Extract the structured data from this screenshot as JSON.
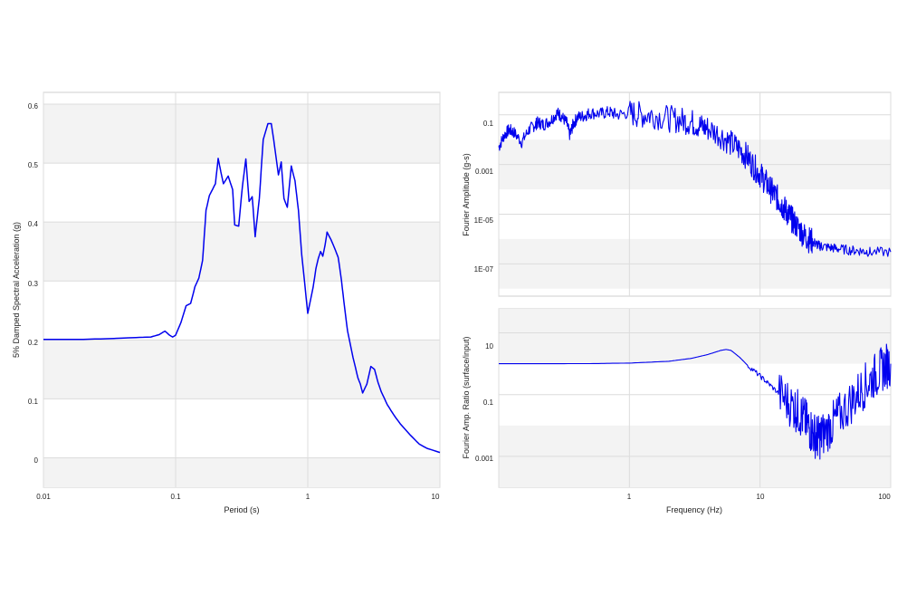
{
  "chart_data": [
    {
      "id": "spectral",
      "type": "line",
      "xlabel": "Period (s)",
      "ylabel": "5% Damped Spectral Acceleration (g)",
      "xscale": "log",
      "yscale": "linear",
      "xlim": [
        0.01,
        10
      ],
      "ylim": [
        -0.05,
        0.62
      ],
      "xticks": [
        "0.01",
        "0.1",
        "1",
        "10"
      ],
      "yticks": [
        "0",
        "0.1",
        "0.2",
        "0.3",
        "0.4",
        "0.5",
        "0.6"
      ],
      "grid": true,
      "line_color": "#0000ee",
      "series": [
        {
          "x": [
            0.01,
            0.02,
            0.03,
            0.05,
            0.065,
            0.075,
            0.083,
            0.09,
            0.095,
            0.1,
            0.11,
            0.12,
            0.13,
            0.14,
            0.15,
            0.16,
            0.17,
            0.18,
            0.19,
            0.2,
            0.21,
            0.22,
            0.23,
            0.25,
            0.27,
            0.28,
            0.3,
            0.32,
            0.34,
            0.36,
            0.38,
            0.4,
            0.43,
            0.46,
            0.5,
            0.53,
            0.56,
            0.6,
            0.63,
            0.66,
            0.7,
            0.75,
            0.8,
            0.85,
            0.9,
            1.0,
            1.1,
            1.15,
            1.2,
            1.25,
            1.3,
            1.35,
            1.4,
            1.5,
            1.6,
            1.7,
            1.8,
            1.9,
            2.0,
            2.2,
            2.4,
            2.5,
            2.6,
            2.8,
            3.0,
            3.2,
            3.4,
            3.6,
            4.0,
            4.5,
            5.0,
            6.0,
            7.0,
            8.0,
            10.0
          ],
          "y": [
            0.201,
            0.201,
            0.202,
            0.204,
            0.205,
            0.209,
            0.215,
            0.208,
            0.205,
            0.208,
            0.23,
            0.258,
            0.262,
            0.29,
            0.305,
            0.335,
            0.42,
            0.445,
            0.455,
            0.465,
            0.508,
            0.485,
            0.465,
            0.478,
            0.455,
            0.395,
            0.393,
            0.46,
            0.507,
            0.435,
            0.443,
            0.375,
            0.44,
            0.54,
            0.567,
            0.567,
            0.53,
            0.48,
            0.502,
            0.44,
            0.425,
            0.495,
            0.47,
            0.42,
            0.345,
            0.245,
            0.29,
            0.32,
            0.338,
            0.35,
            0.342,
            0.36,
            0.383,
            0.37,
            0.355,
            0.34,
            0.3,
            0.255,
            0.215,
            0.17,
            0.135,
            0.125,
            0.11,
            0.125,
            0.155,
            0.15,
            0.128,
            0.112,
            0.09,
            0.072,
            0.058,
            0.038,
            0.023,
            0.016,
            0.009
          ]
        }
      ]
    },
    {
      "id": "fourier-amplitude",
      "type": "line",
      "xlabel": "",
      "ylabel": "Fourier Amplitude (g-s)",
      "xscale": "log",
      "yscale": "log",
      "xlim": [
        0.1,
        100
      ],
      "ylim": [
        5e-09,
        0.8
      ],
      "yticks": [
        "1E-07",
        "1E-05",
        "0.001",
        "0.1"
      ],
      "grid": true,
      "line_color": "#0000ee",
      "series": [
        {
          "x": [
            0.1,
            0.11,
            0.12,
            0.13,
            0.15,
            0.17,
            0.19,
            0.2,
            0.22,
            0.25,
            0.28,
            0.3,
            0.33,
            0.35,
            0.37,
            0.4,
            0.45,
            0.5,
            0.6,
            0.7,
            0.8,
            1.0,
            1.2,
            1.5,
            2.0,
            2.5,
            3.0,
            3.5,
            4.0,
            5.0,
            6.0,
            7.0,
            8.0,
            9.0,
            10.0,
            11.0,
            12.0,
            13.0,
            14.0,
            15.0,
            16.0,
            17.0,
            18.0,
            20.0,
            22.0,
            24.0,
            26.0,
            28.0,
            30.0,
            35.0,
            40.0,
            50.0,
            60.0,
            70.0,
            100.0
          ],
          "y": [
            0.005,
            0.015,
            0.025,
            0.02,
            0.008,
            0.025,
            0.04,
            0.05,
            0.04,
            0.06,
            0.12,
            0.09,
            0.05,
            0.015,
            0.04,
            0.08,
            0.09,
            0.12,
            0.11,
            0.13,
            0.1,
            0.12,
            0.1,
            0.1,
            0.07,
            0.06,
            0.05,
            0.035,
            0.028,
            0.015,
            0.007,
            0.004,
            0.002,
            0.0008,
            0.0004,
            0.0002,
            0.0001,
            6e-05,
            3.5e-05,
            2e-05,
            1.2e-05,
            8e-06,
            5e-06,
            2.5e-06,
            1.3e-06,
            9e-07,
            7e-07,
            5.5e-07,
            5e-07,
            4.5e-07,
            4e-07,
            3.5e-07,
            3.3e-07,
            3e-07,
            3e-07
          ]
        }
      ]
    },
    {
      "id": "fourier-ratio",
      "type": "line",
      "xlabel": "Frequency (Hz)",
      "ylabel": "Fourier Amp. Ratio (surface/input)",
      "xscale": "log",
      "yscale": "log",
      "xlim": [
        0.1,
        100
      ],
      "ylim": [
        0.0001,
        60
      ],
      "xticks": [
        "1",
        "10",
        "100"
      ],
      "yticks": [
        "0.001",
        "0.1",
        "10"
      ],
      "grid": true,
      "line_color": "#0000ee",
      "series": [
        {
          "x": [
            0.1,
            0.2,
            0.5,
            1.0,
            2.0,
            3.0,
            4.0,
            5.0,
            5.5,
            6.0,
            7.0,
            8.0,
            10.0,
            12.0,
            15.0,
            18.0,
            20.0,
            22.0,
            24.0,
            26.0,
            28.0,
            30.0,
            35.0,
            40.0,
            50.0,
            60.0,
            70.0,
            80.0,
            90.0,
            100.0
          ],
          "y": [
            1.0,
            1.0,
            1.01,
            1.05,
            1.2,
            1.5,
            2.0,
            2.7,
            2.9,
            2.7,
            1.6,
            0.9,
            0.4,
            0.2,
            0.08,
            0.04,
            0.025,
            0.015,
            0.008,
            0.005,
            0.004,
            0.005,
            0.01,
            0.02,
            0.06,
            0.15,
            0.3,
            0.5,
            0.8,
            1.0
          ]
        }
      ]
    }
  ]
}
